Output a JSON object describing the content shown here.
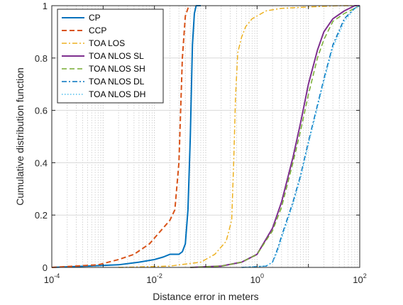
{
  "chart_data": {
    "type": "line",
    "xscale": "log",
    "xlim": [
      0.0001,
      100
    ],
    "ylim": [
      0,
      1
    ],
    "xticks": [
      {
        "base": "10",
        "exp": "-4"
      },
      {
        "base": "10",
        "exp": "-2"
      },
      {
        "base": "10",
        "exp": "0"
      },
      {
        "base": "10",
        "exp": "2"
      }
    ],
    "yticks": [
      "0",
      "0.2",
      "0.4",
      "0.6",
      "0.8",
      "1"
    ],
    "xlabel": "Distance error in meters",
    "ylabel": "Cumulative distribution function",
    "grid": "x minor dotted, y major",
    "legend_position": "top-left",
    "series": [
      {
        "name": "CP",
        "color": "#0072BD",
        "dash": "solid",
        "width": 2,
        "x": [
          0.0001,
          0.0005,
          0.002,
          0.005,
          0.01,
          0.015,
          0.02,
          0.03,
          0.035,
          0.04,
          0.045,
          0.05,
          0.055,
          0.06,
          0.065,
          0.07,
          0.08
        ],
        "y": [
          0,
          0.005,
          0.01,
          0.02,
          0.03,
          0.04,
          0.05,
          0.05,
          0.06,
          0.09,
          0.22,
          0.5,
          0.85,
          0.97,
          1.0,
          1.0,
          1.0
        ]
      },
      {
        "name": "CCP",
        "color": "#D95319",
        "dash": "dashed",
        "width": 2,
        "x": [
          0.0001,
          0.0008,
          0.002,
          0.004,
          0.008,
          0.012,
          0.02,
          0.025,
          0.03,
          0.035,
          0.04,
          0.045,
          0.05
        ],
        "y": [
          0,
          0.01,
          0.03,
          0.05,
          0.09,
          0.13,
          0.18,
          0.22,
          0.4,
          0.8,
          0.96,
          0.99,
          1.0
        ]
      },
      {
        "name": "TOA LOS",
        "color": "#EDB120",
        "dash": "dashdot",
        "width": 1.5,
        "x": [
          0.002,
          0.02,
          0.08,
          0.15,
          0.25,
          0.32,
          0.35,
          0.38,
          0.42,
          0.5,
          0.6,
          0.8,
          1.5,
          3,
          10,
          40,
          100
        ],
        "y": [
          0,
          0.005,
          0.02,
          0.05,
          0.1,
          0.18,
          0.4,
          0.65,
          0.82,
          0.88,
          0.92,
          0.95,
          0.98,
          0.99,
          0.995,
          1.0,
          1.0
        ]
      },
      {
        "name": "TOA NLOS SL",
        "color": "#7E2F8E",
        "dash": "solid",
        "width": 2,
        "x": [
          0.05,
          0.2,
          0.5,
          1,
          2,
          3,
          5,
          7,
          10,
          15,
          20,
          30,
          50,
          80,
          100
        ],
        "y": [
          0,
          0.005,
          0.02,
          0.05,
          0.15,
          0.25,
          0.42,
          0.55,
          0.7,
          0.83,
          0.9,
          0.95,
          0.98,
          1.0,
          1.0
        ]
      },
      {
        "name": "TOA NLOS SH",
        "color": "#77AC30",
        "dash": "dashed",
        "width": 1.5,
        "x": [
          0.05,
          0.2,
          0.5,
          1,
          2,
          3,
          5,
          7,
          10,
          15,
          20,
          30,
          50,
          80,
          100
        ],
        "y": [
          0,
          0.005,
          0.02,
          0.05,
          0.14,
          0.23,
          0.4,
          0.52,
          0.66,
          0.8,
          0.87,
          0.94,
          0.97,
          0.99,
          1.0
        ]
      },
      {
        "name": "TOA NLOS DL",
        "color": "#0072BD",
        "dash": "dashdot",
        "width": 1.5,
        "x": [
          0.5,
          1.5,
          2,
          2.5,
          3,
          5,
          7,
          10,
          15,
          20,
          30,
          50,
          80,
          100
        ],
        "y": [
          0,
          0.005,
          0.02,
          0.07,
          0.12,
          0.25,
          0.35,
          0.48,
          0.62,
          0.72,
          0.85,
          0.95,
          0.99,
          1.0
        ]
      },
      {
        "name": "TOA NLOS DH",
        "color": "#4DBEEE",
        "dash": "dotted",
        "width": 1.5,
        "x": [
          0.5,
          1.5,
          2,
          2.5,
          3,
          5,
          7,
          10,
          15,
          20,
          30,
          50,
          80,
          100
        ],
        "y": [
          0,
          0.005,
          0.02,
          0.06,
          0.11,
          0.24,
          0.34,
          0.47,
          0.61,
          0.71,
          0.84,
          0.94,
          0.99,
          1.0
        ]
      }
    ]
  }
}
